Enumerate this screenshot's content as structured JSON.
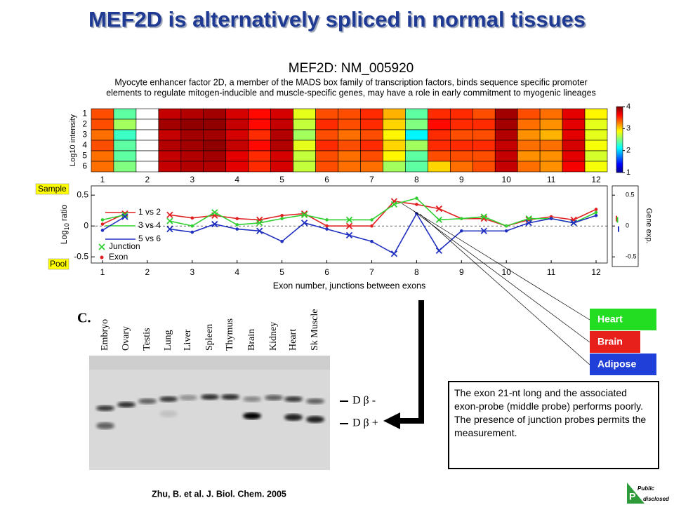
{
  "title": "MEF2D is alternatively spliced in normal tissues",
  "chart_data": [
    {
      "type": "heatmap",
      "title": "MEF2D: NM_005920",
      "subtitle": [
        "Myocyte enhancer factor 2D, a member of the MADS box family of transcription factors, binds sequence specific promoter",
        "elements to regulate mitogen-inducible and muscle-specific genes, may have a role in early commitment to myogenic lineages"
      ],
      "ylabel": "Log10 intensity",
      "rows": [
        1,
        2,
        3,
        4,
        5,
        6
      ],
      "x": [
        1,
        1.5,
        2,
        2.5,
        3,
        3.5,
        4,
        4.5,
        5,
        5.5,
        6,
        6.5,
        7,
        7.5,
        8,
        8.5,
        9,
        9.5,
        10,
        10.5,
        11,
        11.5,
        12
      ],
      "xlim": [
        0.75,
        12.25
      ],
      "xticks": [
        1,
        2,
        3,
        4,
        5,
        6,
        7,
        8,
        9,
        10,
        11,
        12
      ],
      "values": [
        [
          3.4,
          2.4,
          null,
          3.8,
          3.85,
          3.9,
          3.75,
          3.6,
          3.75,
          2.8,
          3.4,
          3.4,
          3.5,
          3.1,
          2.4,
          3.5,
          3.5,
          3.4,
          3.9,
          3.4,
          3.3,
          3.7,
          2.9
        ],
        [
          3.4,
          2.6,
          null,
          3.9,
          3.95,
          3.95,
          3.8,
          3.6,
          3.8,
          2.7,
          3.5,
          3.4,
          3.5,
          3.0,
          2.5,
          3.6,
          3.5,
          3.5,
          3.9,
          3.3,
          3.2,
          3.7,
          2.8
        ],
        [
          3.3,
          2.3,
          null,
          3.8,
          3.9,
          3.9,
          3.75,
          3.5,
          3.85,
          2.6,
          3.4,
          3.3,
          3.4,
          2.9,
          2.1,
          3.5,
          3.4,
          3.4,
          3.85,
          3.2,
          3.1,
          3.7,
          2.8
        ],
        [
          3.4,
          2.4,
          null,
          3.85,
          3.9,
          3.95,
          3.8,
          3.6,
          3.85,
          2.8,
          3.5,
          3.4,
          3.5,
          3.0,
          2.6,
          3.5,
          3.5,
          3.5,
          3.8,
          3.3,
          3.3,
          3.75,
          2.85
        ],
        [
          3.3,
          2.4,
          null,
          3.8,
          3.85,
          3.9,
          3.7,
          3.5,
          3.75,
          2.7,
          3.4,
          3.3,
          3.4,
          2.9,
          2.4,
          3.4,
          3.4,
          3.4,
          3.8,
          3.2,
          3.2,
          3.7,
          2.75
        ],
        [
          3.3,
          2.5,
          null,
          3.8,
          3.85,
          3.85,
          3.7,
          3.5,
          3.75,
          2.7,
          3.4,
          3.3,
          3.3,
          2.6,
          2.4,
          3.0,
          3.3,
          3.4,
          3.8,
          3.3,
          3.2,
          3.65,
          2.85
        ]
      ],
      "colorbar": {
        "lim": [
          1,
          4
        ],
        "ticks": [
          1,
          2,
          3,
          4
        ]
      }
    },
    {
      "type": "line",
      "x": [
        1,
        1.5,
        2,
        2.5,
        3,
        3.5,
        4,
        4.5,
        5,
        5.5,
        6,
        6.5,
        7,
        7.5,
        8,
        8.5,
        9,
        9.5,
        10,
        10.5,
        11,
        11.5,
        12
      ],
      "xlim": [
        0.75,
        12.25
      ],
      "xticks": [
        1,
        2,
        3,
        4,
        5,
        6,
        7,
        8,
        9,
        10,
        11,
        12
      ],
      "xlabel": "Exon number, junctions between exons",
      "ylabel": {
        "base": "Log",
        "sub": "10",
        "rest": "ratio"
      },
      "ylim": [
        -0.6,
        0.65
      ],
      "yticks": [
        0.5,
        0,
        -0.5
      ],
      "sample_label": "Sample",
      "pool_label": "Pool",
      "series": [
        {
          "name": "1 vs 2",
          "color": "#e02020",
          "values": [
            0.03,
            0.2,
            null,
            0.18,
            0.13,
            0.17,
            0.12,
            0.1,
            0.17,
            0.2,
            0.0,
            0.0,
            0.0,
            0.4,
            0.35,
            0.28,
            0.12,
            0.12,
            0.0,
            0.1,
            0.15,
            0.1,
            0.27
          ]
        },
        {
          "name": "3 vs 4",
          "color": "#30d030",
          "values": [
            0.1,
            0.18,
            null,
            0.08,
            0.0,
            0.22,
            0.02,
            0.05,
            0.12,
            0.18,
            0.1,
            0.1,
            0.1,
            0.35,
            0.45,
            0.1,
            0.12,
            0.15,
            0.0,
            0.12,
            0.12,
            0.05,
            0.22
          ]
        },
        {
          "name": "5 vs 6",
          "color": "#2030c0",
          "values": [
            -0.07,
            0.15,
            null,
            -0.05,
            -0.1,
            0.03,
            -0.05,
            -0.08,
            -0.25,
            0.05,
            -0.05,
            -0.15,
            -0.25,
            -0.45,
            0.2,
            -0.4,
            -0.08,
            -0.08,
            -0.08,
            0.05,
            0.12,
            0.05,
            0.17
          ]
        }
      ],
      "marker_legend": [
        "Junction",
        "Exon"
      ],
      "gene_exp": {
        "label": "Gene exp.",
        "yticks": [
          0.5,
          0,
          -0.5
        ],
        "values": [
          0.12,
          0.1,
          -0.05
        ]
      }
    }
  ],
  "gel": {
    "panel": "C.",
    "lanes": [
      "Embryo",
      "Ovary",
      "Testis",
      "Lung",
      "Liver",
      "Spleen",
      "Thymus",
      "Brain",
      "Kidney",
      "Heart",
      "Sk Muscle"
    ],
    "bands": [
      "D β -",
      "D β +"
    ]
  },
  "tissues": [
    {
      "name": "Heart",
      "color": "#22dd22"
    },
    {
      "name": "Brain",
      "color": "#e8201c"
    },
    {
      "name": "Adipose",
      "color": "#1f3fd8"
    }
  ],
  "note": "The exon 21-nt long and the associated exon-probe (middle probe) performs poorly.  The presence of junction probes permits the measurement.",
  "citation": "Zhu, B. et al. J. Biol. Chem. 2005",
  "logo": {
    "top": "Public",
    "bottom": "disclosed",
    "letter": "P"
  }
}
